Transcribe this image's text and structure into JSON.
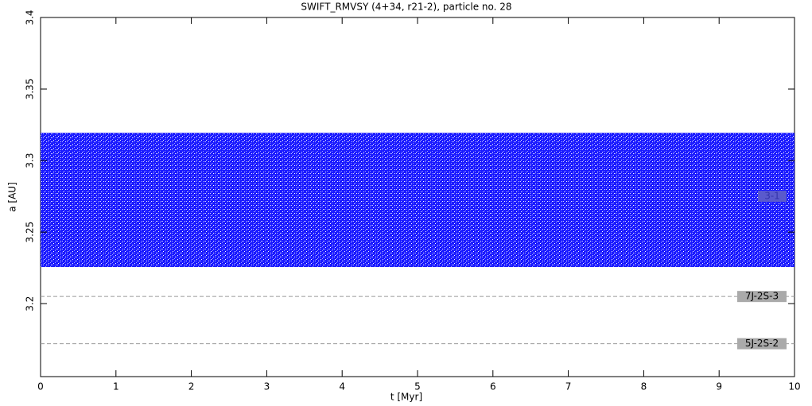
{
  "chart_data": {
    "type": "band",
    "title": "SWIFT_RMVSY (4+34, r21-2), particle no. 28",
    "x_label": "t [Myr]",
    "y_label": "a [AU]",
    "x": [
      0,
      10
    ],
    "lower": [
      3.2256,
      3.2256
    ],
    "upper": [
      3.3194,
      3.3194
    ],
    "color": "#0000ff",
    "annotation": "3-1",
    "annotation_y": 3.275,
    "resonances": [
      {
        "label": "7J-2S-3",
        "value": 3.205
      },
      {
        "label": "5J-2S-2",
        "value": 3.172
      }
    ],
    "xlim": [
      0,
      10
    ],
    "xticks": [
      0,
      1,
      2,
      3,
      4,
      5,
      6,
      7,
      8,
      9,
      10
    ],
    "ylim": [
      3.149,
      3.4
    ],
    "yticks": [
      3.2,
      3.25,
      3.3,
      3.35,
      3.4
    ]
  }
}
